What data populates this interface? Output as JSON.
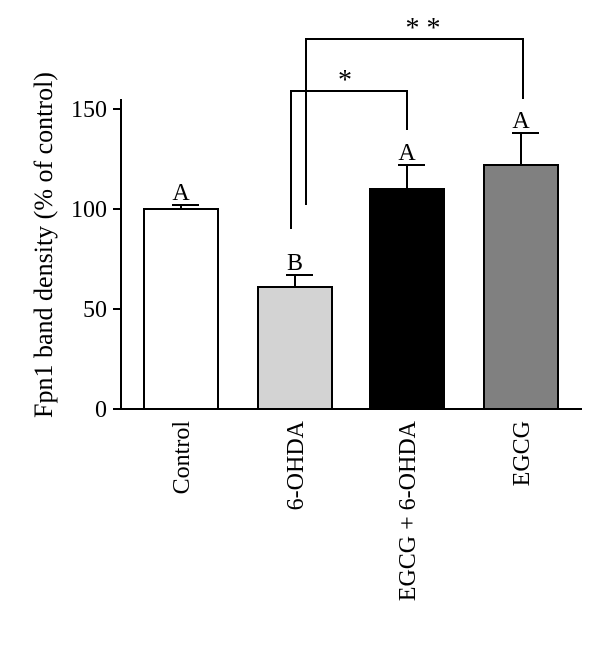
{
  "chart_data": {
    "type": "bar",
    "ylabel": "Fpn1 band density (% of control)",
    "ylim": [
      0,
      175
    ],
    "yticks": [
      0,
      50,
      100,
      150
    ],
    "categories": [
      "Control",
      "6-OHDA",
      "EGCG + 6-OHDA",
      "EGCG"
    ],
    "values": [
      100,
      61,
      110,
      122
    ],
    "errors": [
      2,
      6,
      12,
      16
    ],
    "bar_colors": [
      "#ffffff",
      "#d3d3d3",
      "#000000",
      "#808080"
    ],
    "letters": [
      "A",
      "B",
      "A",
      "A"
    ],
    "significance": [
      {
        "from": 1,
        "to": 2,
        "label": "*"
      },
      {
        "from": 1,
        "to": 3,
        "label": "* *"
      }
    ]
  }
}
